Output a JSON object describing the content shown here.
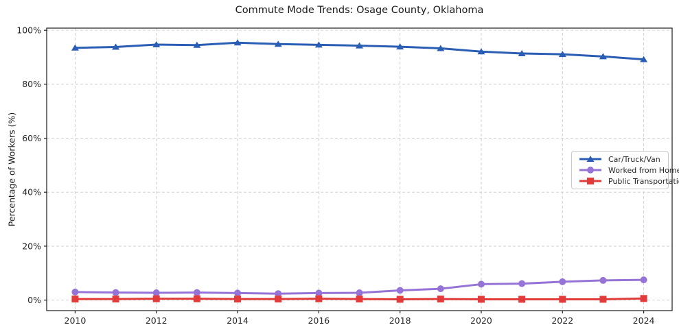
{
  "chart_data": {
    "type": "line",
    "title": "Commute Mode Trends: Osage County, Oklahoma",
    "xlabel": "",
    "ylabel": "Percentage of Workers (%)",
    "x": [
      2010,
      2011,
      2012,
      2013,
      2014,
      2015,
      2016,
      2017,
      2018,
      2019,
      2020,
      2021,
      2022,
      2023,
      2024
    ],
    "series": [
      {
        "name": "Car/Truck/Van",
        "color": "#2a5db4",
        "marker": "triangle",
        "values": [
          93.5,
          93.8,
          94.7,
          94.5,
          95.4,
          94.9,
          94.6,
          94.3,
          93.9,
          93.3,
          92.1,
          91.4,
          91.1,
          90.3,
          89.2
        ]
      },
      {
        "name": "Worked from Home",
        "color": "#9673d6",
        "marker": "circle",
        "values": [
          3.0,
          2.8,
          2.7,
          2.8,
          2.6,
          2.4,
          2.6,
          2.7,
          3.6,
          4.2,
          5.9,
          6.1,
          6.8,
          7.3,
          7.5
        ]
      },
      {
        "name": "Public Transportation",
        "color": "#e23b3b",
        "marker": "square",
        "values": [
          0.4,
          0.4,
          0.5,
          0.5,
          0.4,
          0.4,
          0.5,
          0.4,
          0.3,
          0.4,
          0.3,
          0.3,
          0.3,
          0.3,
          0.6
        ]
      }
    ],
    "xlim": [
      2009.3,
      2024.7
    ],
    "ylim": [
      -3.9,
      100.8
    ],
    "xticks": [
      2010,
      2012,
      2014,
      2016,
      2018,
      2020,
      2022,
      2024
    ],
    "xtick_labels": [
      "2010",
      "2012",
      "2014",
      "2016",
      "2018",
      "2020",
      "2022",
      "2024"
    ],
    "yticks": [
      0,
      20,
      40,
      60,
      80,
      100
    ],
    "ytick_labels": [
      "0%",
      "20%",
      "40%",
      "60%",
      "80%",
      "100%"
    ],
    "grid": true,
    "legend_position": "center-right"
  }
}
